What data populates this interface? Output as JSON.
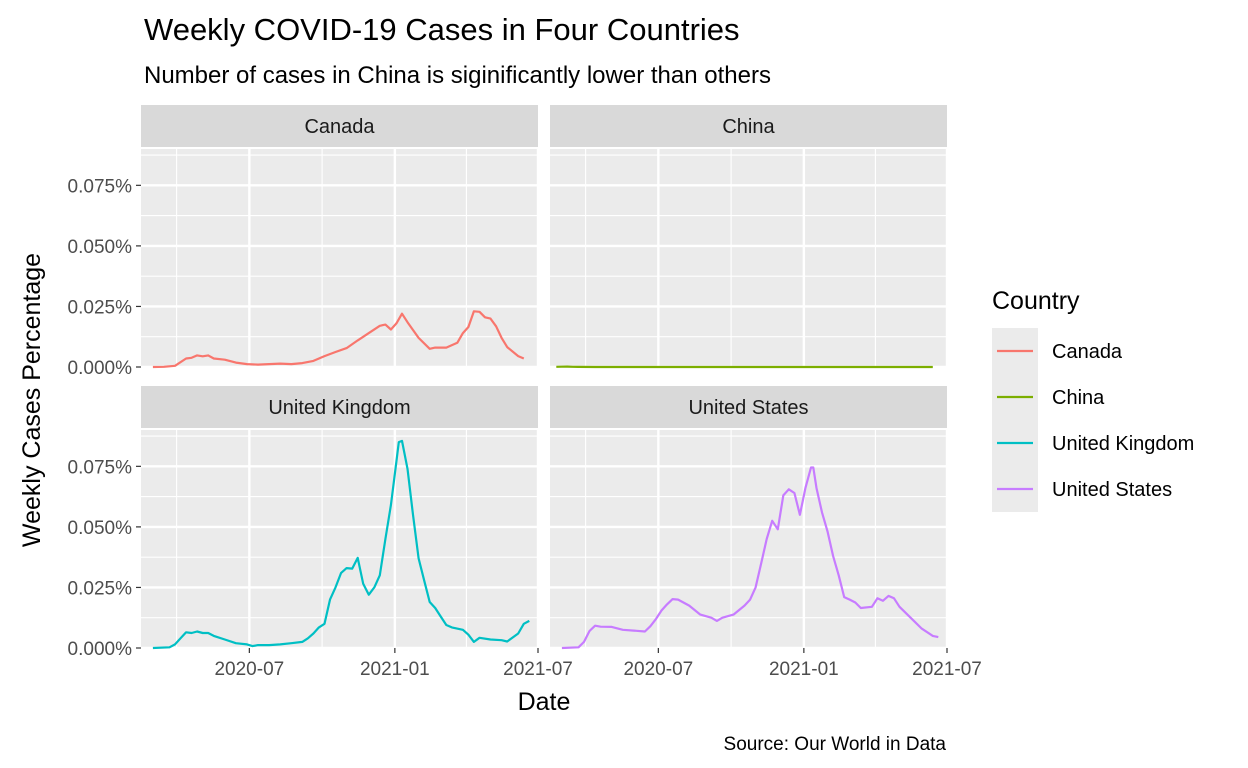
{
  "chart_data": {
    "type": "line",
    "title": "Weekly COVID-19 Cases in Four Countries",
    "subtitle": "Number of cases in China is siginificantly lower than others",
    "caption": "Source: Our World in Data",
    "xlabel": "Date",
    "ylabel": "Weekly Cases Percentage",
    "x_ticks": [
      "2020-07",
      "2021-01",
      "2021-07"
    ],
    "y_ticks": [
      "0.000%",
      "0.025%",
      "0.050%",
      "0.075%"
    ],
    "y_tick_values": [
      0,
      0.025,
      0.05,
      0.075
    ],
    "xlim": [
      "2020-02-15",
      "2021-07-01"
    ],
    "ylim": [
      0,
      0.09
    ],
    "grid": true,
    "legend": {
      "title": "Country",
      "position": "right"
    },
    "series": [
      {
        "name": "Canada",
        "color": "#F8766D",
        "points": [
          [
            "2020-03-01",
            0.0
          ],
          [
            "2020-03-15",
            0.0001
          ],
          [
            "2020-03-29",
            0.0005
          ],
          [
            "2020-04-12",
            0.0035
          ],
          [
            "2020-04-19",
            0.0038
          ],
          [
            "2020-04-26",
            0.0048
          ],
          [
            "2020-05-03",
            0.0044
          ],
          [
            "2020-05-10",
            0.0048
          ],
          [
            "2020-05-17",
            0.0035
          ],
          [
            "2020-05-31",
            0.003
          ],
          [
            "2020-06-14",
            0.0018
          ],
          [
            "2020-06-28",
            0.0012
          ],
          [
            "2020-07-12",
            0.001
          ],
          [
            "2020-07-26",
            0.0012
          ],
          [
            "2020-08-09",
            0.0014
          ],
          [
            "2020-08-23",
            0.0012
          ],
          [
            "2020-09-06",
            0.0016
          ],
          [
            "2020-09-20",
            0.0025
          ],
          [
            "2020-10-04",
            0.0045
          ],
          [
            "2020-10-18",
            0.0062
          ],
          [
            "2020-11-01",
            0.0078
          ],
          [
            "2020-11-15",
            0.011
          ],
          [
            "2020-11-29",
            0.014
          ],
          [
            "2020-12-13",
            0.017
          ],
          [
            "2020-12-20",
            0.0175
          ],
          [
            "2020-12-27",
            0.0155
          ],
          [
            "2021-01-03",
            0.018
          ],
          [
            "2021-01-10",
            0.022
          ],
          [
            "2021-01-17",
            0.0185
          ],
          [
            "2021-01-31",
            0.012
          ],
          [
            "2021-02-14",
            0.0075
          ],
          [
            "2021-02-21",
            0.008
          ],
          [
            "2021-03-07",
            0.008
          ],
          [
            "2021-03-21",
            0.01
          ],
          [
            "2021-03-28",
            0.014
          ],
          [
            "2021-04-04",
            0.0165
          ],
          [
            "2021-04-11",
            0.023
          ],
          [
            "2021-04-18",
            0.0228
          ],
          [
            "2021-04-25",
            0.0205
          ],
          [
            "2021-05-02",
            0.02
          ],
          [
            "2021-05-09",
            0.0168
          ],
          [
            "2021-05-16",
            0.012
          ],
          [
            "2021-05-23",
            0.0082
          ],
          [
            "2021-06-06",
            0.0045
          ],
          [
            "2021-06-13",
            0.0035
          ]
        ]
      },
      {
        "name": "China",
        "color": "#7CAE00",
        "points": [
          [
            "2020-02-23",
            0.0001
          ],
          [
            "2020-03-01",
            0.00012
          ],
          [
            "2020-03-08",
            0.00015
          ],
          [
            "2020-03-15",
            8e-05
          ],
          [
            "2020-03-22",
            3e-05
          ],
          [
            "2020-04-12",
            2e-05
          ],
          [
            "2021-06-13",
            2e-05
          ]
        ]
      },
      {
        "name": "United Kingdom",
        "color": "#00BFC4",
        "points": [
          [
            "2020-03-01",
            0.0
          ],
          [
            "2020-03-22",
            0.0003
          ],
          [
            "2020-03-29",
            0.0015
          ],
          [
            "2020-04-05",
            0.004
          ],
          [
            "2020-04-12",
            0.0065
          ],
          [
            "2020-04-19",
            0.0062
          ],
          [
            "2020-04-26",
            0.0068
          ],
          [
            "2020-05-03",
            0.0062
          ],
          [
            "2020-05-10",
            0.0062
          ],
          [
            "2020-05-17",
            0.005
          ],
          [
            "2020-05-31",
            0.0035
          ],
          [
            "2020-06-14",
            0.002
          ],
          [
            "2020-06-28",
            0.0015
          ],
          [
            "2020-07-05",
            0.0008
          ],
          [
            "2020-07-12",
            0.0012
          ],
          [
            "2020-07-26",
            0.0012
          ],
          [
            "2020-08-09",
            0.0015
          ],
          [
            "2020-08-23",
            0.002
          ],
          [
            "2020-09-06",
            0.0025
          ],
          [
            "2020-09-13",
            0.004
          ],
          [
            "2020-09-20",
            0.006
          ],
          [
            "2020-09-27",
            0.0085
          ],
          [
            "2020-10-04",
            0.01
          ],
          [
            "2020-10-11",
            0.02
          ],
          [
            "2020-10-18",
            0.025
          ],
          [
            "2020-10-25",
            0.031
          ],
          [
            "2020-11-01",
            0.033
          ],
          [
            "2020-11-08",
            0.0328
          ],
          [
            "2020-11-15",
            0.0372
          ],
          [
            "2020-11-22",
            0.0265
          ],
          [
            "2020-11-29",
            0.022
          ],
          [
            "2020-12-06",
            0.025
          ],
          [
            "2020-12-13",
            0.03
          ],
          [
            "2020-12-20",
            0.045
          ],
          [
            "2020-12-27",
            0.059
          ],
          [
            "2021-01-03",
            0.077
          ],
          [
            "2021-01-06",
            0.085
          ],
          [
            "2021-01-10",
            0.0855
          ],
          [
            "2021-01-17",
            0.074
          ],
          [
            "2021-01-24",
            0.055
          ],
          [
            "2021-01-31",
            0.037
          ],
          [
            "2021-02-07",
            0.028
          ],
          [
            "2021-02-14",
            0.019
          ],
          [
            "2021-02-21",
            0.0165
          ],
          [
            "2021-02-28",
            0.013
          ],
          [
            "2021-03-07",
            0.0095
          ],
          [
            "2021-03-14",
            0.0085
          ],
          [
            "2021-03-28",
            0.0075
          ],
          [
            "2021-04-04",
            0.0055
          ],
          [
            "2021-04-11",
            0.0025
          ],
          [
            "2021-04-18",
            0.0042
          ],
          [
            "2021-05-02",
            0.0035
          ],
          [
            "2021-05-16",
            0.0032
          ],
          [
            "2021-05-23",
            0.0027
          ],
          [
            "2021-06-06",
            0.006
          ],
          [
            "2021-06-13",
            0.01
          ],
          [
            "2021-06-20",
            0.0112
          ]
        ]
      },
      {
        "name": "United States",
        "color": "#C77CFF",
        "points": [
          [
            "2020-03-01",
            0.0
          ],
          [
            "2020-03-22",
            0.0003
          ],
          [
            "2020-03-29",
            0.0025
          ],
          [
            "2020-04-05",
            0.007
          ],
          [
            "2020-04-12",
            0.0092
          ],
          [
            "2020-04-19",
            0.0088
          ],
          [
            "2020-05-03",
            0.0087
          ],
          [
            "2020-05-17",
            0.0075
          ],
          [
            "2020-05-31",
            0.0072
          ],
          [
            "2020-06-14",
            0.0068
          ],
          [
            "2020-06-21",
            0.009
          ],
          [
            "2020-06-28",
            0.012
          ],
          [
            "2020-07-05",
            0.0155
          ],
          [
            "2020-07-12",
            0.018
          ],
          [
            "2020-07-19",
            0.0202
          ],
          [
            "2020-07-26",
            0.02
          ],
          [
            "2020-08-09",
            0.0175
          ],
          [
            "2020-08-23",
            0.0138
          ],
          [
            "2020-09-06",
            0.0125
          ],
          [
            "2020-09-13",
            0.0112
          ],
          [
            "2020-09-20",
            0.0125
          ],
          [
            "2020-10-04",
            0.0138
          ],
          [
            "2020-10-18",
            0.0175
          ],
          [
            "2020-10-25",
            0.02
          ],
          [
            "2020-11-01",
            0.025
          ],
          [
            "2020-11-08",
            0.035
          ],
          [
            "2020-11-15",
            0.045
          ],
          [
            "2020-11-22",
            0.0525
          ],
          [
            "2020-11-29",
            0.049
          ],
          [
            "2020-12-06",
            0.063
          ],
          [
            "2020-12-13",
            0.0655
          ],
          [
            "2020-12-20",
            0.064
          ],
          [
            "2020-12-27",
            0.055
          ],
          [
            "2021-01-03",
            0.066
          ],
          [
            "2021-01-10",
            0.0745
          ],
          [
            "2021-01-13",
            0.0745
          ],
          [
            "2021-01-17",
            0.066
          ],
          [
            "2021-01-24",
            0.056
          ],
          [
            "2021-01-31",
            0.048
          ],
          [
            "2021-02-07",
            0.038
          ],
          [
            "2021-02-14",
            0.03
          ],
          [
            "2021-02-21",
            0.021
          ],
          [
            "2021-02-28",
            0.02
          ],
          [
            "2021-03-07",
            0.0188
          ],
          [
            "2021-03-14",
            0.0165
          ],
          [
            "2021-03-28",
            0.017
          ],
          [
            "2021-04-04",
            0.0205
          ],
          [
            "2021-04-11",
            0.0195
          ],
          [
            "2021-04-18",
            0.0215
          ],
          [
            "2021-04-25",
            0.0205
          ],
          [
            "2021-05-02",
            0.017
          ],
          [
            "2021-05-16",
            0.0125
          ],
          [
            "2021-05-30",
            0.008
          ],
          [
            "2021-06-13",
            0.005
          ],
          [
            "2021-06-20",
            0.0045
          ]
        ]
      }
    ]
  }
}
